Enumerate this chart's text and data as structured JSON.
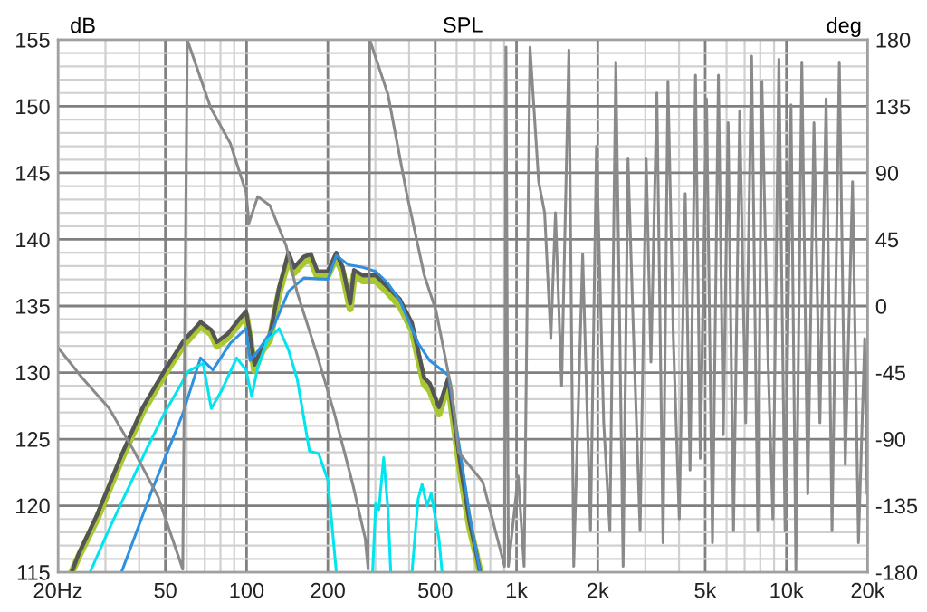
{
  "chart_data": {
    "type": "line",
    "title": "SPL",
    "ylabel": "dB",
    "y2label": "deg",
    "log": "x",
    "grid": true,
    "legend": false,
    "line_style": "solid",
    "marker": "none",
    "xlim": [
      20,
      20000
    ],
    "xticks": [
      {
        "value": 20,
        "label": "20Hz"
      },
      50,
      100,
      200,
      500,
      {
        "value": 1000,
        "label": "1k"
      },
      {
        "value": 2000,
        "label": "2k"
      },
      {
        "value": 5000,
        "label": "5k"
      },
      {
        "value": 10000,
        "label": "10k"
      },
      {
        "value": 20000,
        "label": "20k"
      }
    ],
    "ylim": [
      115,
      155
    ],
    "yticks": [
      115,
      120,
      125,
      130,
      135,
      140,
      145,
      150,
      155
    ],
    "y2lim": [
      -180,
      180
    ],
    "y2ticks": [
      -180,
      -135,
      -90,
      -45,
      0,
      45,
      90,
      135,
      180
    ],
    "series": [
      {
        "color": "#a8c832",
        "x": [
          22.5,
          23.9,
          27.9,
          34.4,
          41.3,
          49.5,
          58,
          67.5,
          74,
          77.6,
          85,
          94.7,
          99.5,
          103,
          107,
          114,
          122,
          132,
          143,
          150,
          163,
          173,
          183,
          200,
          215,
          227,
          242,
          250,
          270,
          301,
          334,
          370,
          410,
          455,
          477,
          516,
          559,
          621,
          670,
          700,
          733
        ],
        "values": [
          115,
          116.2,
          119,
          123.5,
          127.1,
          129.8,
          132,
          133.5,
          132.9,
          132,
          132.6,
          133.8,
          134.3,
          132.5,
          130.2,
          131.6,
          132.5,
          136,
          138.6,
          137.5,
          138.3,
          138.5,
          137.2,
          137.3,
          138.7,
          137.5,
          134.8,
          137.3,
          136.9,
          136.9,
          136,
          135,
          133.2,
          129.1,
          128.7,
          126.9,
          129.2,
          122.4,
          118.4,
          116.8,
          115
        ]
      },
      {
        "color": "#555555",
        "x": [
          22.5,
          23.9,
          27.9,
          34.4,
          41.3,
          49.5,
          58,
          67.5,
          74,
          77.6,
          85,
          94.7,
          99.5,
          103,
          107,
          114,
          122,
          132,
          143,
          150,
          163,
          173,
          183,
          200,
          215,
          227,
          242,
          250,
          270,
          301,
          334,
          370,
          410,
          455,
          477,
          516,
          559,
          621,
          670,
          700,
          733
        ],
        "values": [
          115,
          116.4,
          119.3,
          123.8,
          127.4,
          130.1,
          132.3,
          133.8,
          133.2,
          132.3,
          132.9,
          134.1,
          134.6,
          132.8,
          130.6,
          131.9,
          132.8,
          136.4,
          139,
          137.9,
          138.7,
          138.9,
          137.6,
          137.6,
          139,
          137.9,
          135.2,
          137.7,
          137.3,
          137.3,
          136.4,
          135.5,
          133.7,
          129.6,
          129.2,
          127.4,
          129.6,
          122.9,
          118.8,
          117,
          115
        ]
      },
      {
        "color": "#3090e0",
        "x": [
          34.4,
          44.5,
          58,
          67.5,
          75,
          87,
          99.5,
          103,
          110,
          125,
          143,
          163,
          200,
          215,
          238,
          270,
          301,
          334,
          370,
          432,
          477,
          559,
          621,
          670,
          733
        ],
        "values": [
          115,
          121.1,
          126.9,
          131.1,
          130.2,
          132.2,
          133.3,
          130.9,
          131.6,
          133.3,
          136.1,
          137.1,
          137,
          138.8,
          138.1,
          137.9,
          137.6,
          136.7,
          135.4,
          132.2,
          130.9,
          129.8,
          123.8,
          119.3,
          115
        ]
      },
      {
        "color": "#00e5ee",
        "x": [
          26.3,
          31.2,
          42.5,
          49.5,
          60.9,
          69,
          74,
          80.6,
          91.9,
          99.5,
          104.5,
          110,
          119,
          132,
          143,
          154,
          171,
          185,
          200,
          215,
          250,
          293,
          301,
          309,
          322,
          334,
          342,
          380,
          410,
          432,
          447,
          466,
          483,
          516,
          530
        ],
        "values": [
          115,
          118.4,
          124.2,
          126.9,
          130.1,
          130.7,
          127.3,
          128.6,
          131.1,
          130.2,
          128.2,
          130.4,
          132.4,
          133.3,
          131.7,
          129.5,
          124.1,
          123.9,
          121.9,
          115,
          null,
          115,
          120.2,
          119.7,
          123.6,
          119.7,
          115,
          null,
          115,
          120.5,
          121.6,
          120,
          120.9,
          117.5,
          115
        ]
      },
      {
        "color": "#8a8a8a",
        "axis": "y2",
        "x": [
          20,
          24.7,
          30.9,
          38,
          47,
          58,
          60.3,
          73.6,
          87,
          99.5,
          102,
          110,
          122,
          140,
          154,
          181,
          211,
          247,
          275,
          282,
          286,
          334,
          391,
          455,
          503,
          574,
          611,
          750,
          811,
          903,
          914,
          933,
          1014,
          1067,
          1122,
          1208,
          1271,
          1340,
          1394,
          1469,
          1563,
          1629,
          1758,
          1880,
          1978,
          2104,
          2218,
          2333,
          2483,
          2588,
          2698,
          2870,
          3022,
          3148,
          3311,
          3491,
          3639,
          3811,
          4009,
          4217,
          4395,
          4603,
          4797,
          5058,
          5321,
          5598,
          5834,
          6081,
          6368,
          6714,
          7063,
          7430,
          7834,
          8110,
          8551,
          8913,
          9376,
          9886,
          10399,
          10840,
          11403,
          11995,
          12648,
          13305,
          14030,
          14757,
          15704,
          16520,
          17579,
          18493,
          19500,
          19908
        ],
        "values": [
          -28,
          -49,
          -69,
          -97,
          -129,
          -178,
          180,
          134,
          110,
          77,
          56,
          74,
          68,
          41,
          9,
          -31,
          -72,
          -120,
          -157,
          -178,
          180,
          143,
          77,
          21,
          -3,
          -56,
          -99,
          -119,
          -143,
          -176,
          175,
          -176,
          -115,
          -176,
          175,
          84,
          63,
          -22,
          63,
          -54,
          173,
          -176,
          35,
          -152,
          108,
          -79,
          -152,
          165,
          -176,
          100,
          -6,
          -152,
          100,
          -38,
          144,
          -160,
          152,
          -22,
          -144,
          76,
          -111,
          156,
          -103,
          140,
          -160,
          156,
          -87,
          124,
          -152,
          132,
          -79,
          169,
          -152,
          152,
          -38,
          -144,
          167,
          -152,
          136,
          -179,
          165,
          -127,
          124,
          -79,
          140,
          -152,
          165,
          -107,
          84,
          -160,
          -22,
          -127
        ]
      }
    ]
  }
}
